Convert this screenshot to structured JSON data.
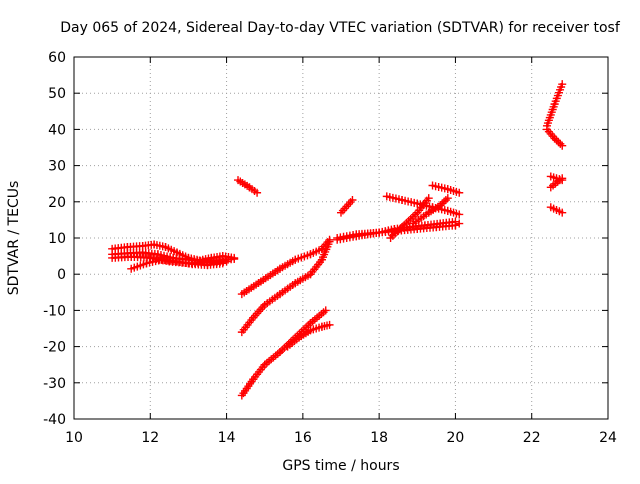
{
  "chart_data": {
    "type": "scatter",
    "title": "Day 065 of 2024, Sidereal Day-to-day VTEC variation (SDTVAR) for receiver tosf",
    "xlabel": "GPS time / hours",
    "ylabel": "SDTVAR / TECUs",
    "xlim": [
      10,
      24
    ],
    "ylim": [
      -40,
      60
    ],
    "xticks": [
      "10",
      "12",
      "14",
      "16",
      "18",
      "20",
      "22",
      "24"
    ],
    "yticks": [
      "-40",
      "-30",
      "-20",
      "-10",
      "0",
      "10",
      "20",
      "30",
      "40",
      "50",
      "60"
    ],
    "grid": true,
    "marker": "plus",
    "color": "#ff0000",
    "series": [
      {
        "x": [
          11.0,
          11.4,
          11.8,
          12.1,
          12.4,
          12.7,
          13.0,
          13.3,
          13.6,
          13.9,
          14.2
        ],
        "y": [
          7.0,
          7.5,
          7.8,
          8.2,
          7.5,
          6.0,
          4.5,
          3.8,
          4.5,
          5.0,
          4.5
        ]
      },
      {
        "x": [
          11.0,
          11.4,
          11.8,
          12.2,
          12.6,
          13.0,
          13.4,
          13.8,
          14.2
        ],
        "y": [
          5.5,
          5.8,
          6.0,
          5.5,
          4.5,
          4.0,
          3.5,
          3.8,
          4.2
        ]
      },
      {
        "x": [
          11.0,
          11.5,
          12.0,
          12.5,
          13.0,
          13.5,
          14.0
        ],
        "y": [
          4.5,
          4.8,
          4.5,
          3.5,
          3.0,
          3.2,
          3.5
        ]
      },
      {
        "x": [
          11.5,
          11.9,
          12.3,
          12.7,
          13.1,
          13.5,
          13.9
        ],
        "y": [
          1.5,
          3.0,
          4.0,
          3.5,
          2.8,
          2.5,
          3.0
        ]
      },
      {
        "x": [
          14.3,
          14.6,
          14.8
        ],
        "y": [
          26.0,
          24.0,
          22.5
        ]
      },
      {
        "x": [
          14.4,
          14.9,
          15.4,
          15.8,
          16.2,
          16.5,
          16.7
        ],
        "y": [
          -5.5,
          -2.0,
          1.5,
          4.0,
          5.5,
          7.0,
          9.5
        ]
      },
      {
        "x": [
          14.4,
          14.7,
          15.0,
          15.4,
          15.8,
          16.2,
          16.5,
          16.7
        ],
        "y": [
          -16.0,
          -12.0,
          -8.5,
          -5.5,
          -2.5,
          0.0,
          4.0,
          9.0
        ]
      },
      {
        "x": [
          14.4,
          14.7,
          15.0,
          15.4,
          15.8,
          16.2,
          16.6
        ],
        "y": [
          -33.5,
          -29.0,
          -25.0,
          -21.5,
          -17.5,
          -13.5,
          -10.0
        ]
      },
      {
        "x": [
          15.6,
          15.9,
          16.2,
          16.5,
          16.7
        ],
        "y": [
          -20.0,
          -17.5,
          -15.5,
          -14.5,
          -14.0
        ]
      },
      {
        "x": [
          17.0,
          17.3
        ],
        "y": [
          17.0,
          20.5
        ]
      },
      {
        "x": [
          16.9,
          17.4,
          18.0,
          18.5,
          19.0,
          19.5,
          20.0,
          20.1
        ],
        "y": [
          10.0,
          11.0,
          11.5,
          12.0,
          12.5,
          13.0,
          13.5,
          14.0
        ]
      },
      {
        "x": [
          16.9,
          17.4,
          18.0,
          18.4,
          18.8,
          19.2,
          19.6,
          20.0
        ],
        "y": [
          9.5,
          10.5,
          11.5,
          12.5,
          13.0,
          13.5,
          14.0,
          14.5
        ]
      },
      {
        "x": [
          18.2,
          18.6,
          19.0,
          19.4,
          19.8,
          20.1
        ],
        "y": [
          21.5,
          20.5,
          19.5,
          18.5,
          17.5,
          16.5
        ]
      },
      {
        "x": [
          18.3,
          18.6,
          19.0,
          19.3
        ],
        "y": [
          10.0,
          13.0,
          17.0,
          21.0
        ]
      },
      {
        "x": [
          18.9,
          19.3,
          19.6,
          19.8
        ],
        "y": [
          14.0,
          17.0,
          19.0,
          21.0
        ]
      },
      {
        "x": [
          19.4,
          19.8,
          20.1
        ],
        "y": [
          24.5,
          23.5,
          22.5
        ]
      },
      {
        "x": [
          22.4,
          22.6,
          22.8
        ],
        "y": [
          41.0,
          47.0,
          52.5
        ]
      },
      {
        "x": [
          22.4,
          22.6,
          22.8
        ],
        "y": [
          40.0,
          37.5,
          35.5
        ]
      },
      {
        "x": [
          22.5,
          22.8
        ],
        "y": [
          27.0,
          26.0
        ]
      },
      {
        "x": [
          22.5,
          22.8
        ],
        "y": [
          24.0,
          26.5
        ]
      },
      {
        "x": [
          22.5,
          22.8
        ],
        "y": [
          18.5,
          17.0
        ]
      }
    ]
  }
}
